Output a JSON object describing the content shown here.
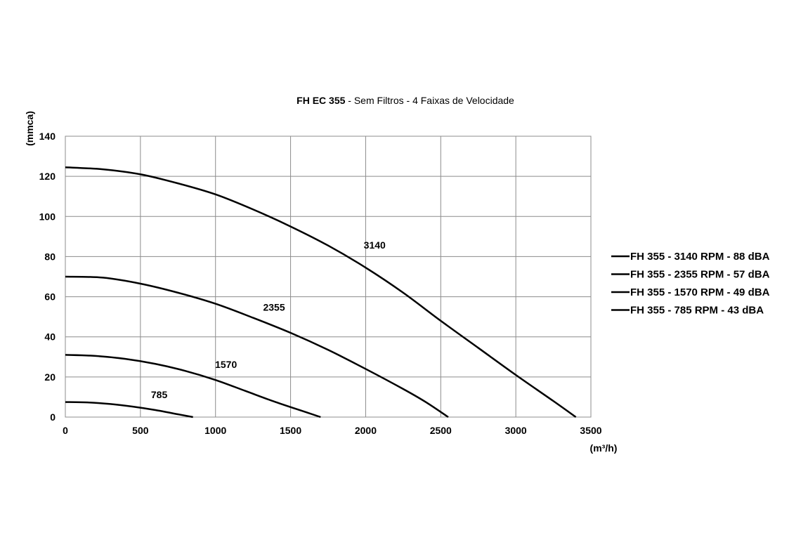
{
  "chart_data": {
    "type": "line",
    "title_bold": "FH EC 355",
    "title_rest": " - Sem Filtros - 4 Faixas de Velocidade",
    "xlabel": "(m³/h)",
    "ylabel": "(mmca)",
    "xlim": [
      0,
      3500
    ],
    "ylim": [
      0,
      140
    ],
    "xticks": [
      0,
      500,
      1000,
      1500,
      2000,
      2500,
      3000,
      3500
    ],
    "yticks": [
      0,
      20,
      40,
      60,
      80,
      100,
      120,
      140
    ],
    "grid": true,
    "legend_position": "right",
    "line_color": "#000000",
    "series": [
      {
        "name": "FH 355 - 3140 RPM - 88 dBA",
        "label": "3140",
        "label_at": [
          2060,
          84
        ],
        "x": [
          0,
          250,
          500,
          750,
          1000,
          1250,
          1500,
          1750,
          2000,
          2250,
          2500,
          2750,
          3000,
          3250,
          3400
        ],
        "y": [
          124.5,
          123.5,
          121,
          116.5,
          111,
          103.5,
          95,
          85.5,
          74.5,
          62,
          48,
          34.5,
          21,
          8,
          0
        ]
      },
      {
        "name": "FH 355 - 2355 RPM - 57 dBA",
        "label": "2355",
        "label_at": [
          1390,
          53
        ],
        "x": [
          0,
          250,
          500,
          750,
          1000,
          1250,
          1500,
          1750,
          2000,
          2250,
          2400,
          2550
        ],
        "y": [
          70,
          69.5,
          66.5,
          62,
          56.5,
          49.5,
          42,
          33.5,
          24,
          14,
          7.5,
          0
        ]
      },
      {
        "name": "FH 355 - 1570 RPM - 49 dBA",
        "label": "1570",
        "label_at": [
          1070,
          24.5
        ],
        "x": [
          0,
          200,
          400,
          600,
          800,
          1000,
          1200,
          1400,
          1600,
          1700
        ],
        "y": [
          31,
          30.5,
          29,
          26.5,
          23,
          18.5,
          13,
          7.5,
          2.5,
          0
        ]
      },
      {
        "name": "FH 355 - 785 RPM - 43 dBA",
        "label": "785",
        "label_at": [
          625,
          9.5
        ],
        "x": [
          0,
          150,
          300,
          450,
          600,
          750,
          850
        ],
        "y": [
          7.5,
          7.3,
          6.5,
          5.2,
          3.5,
          1.4,
          0
        ]
      }
    ]
  }
}
